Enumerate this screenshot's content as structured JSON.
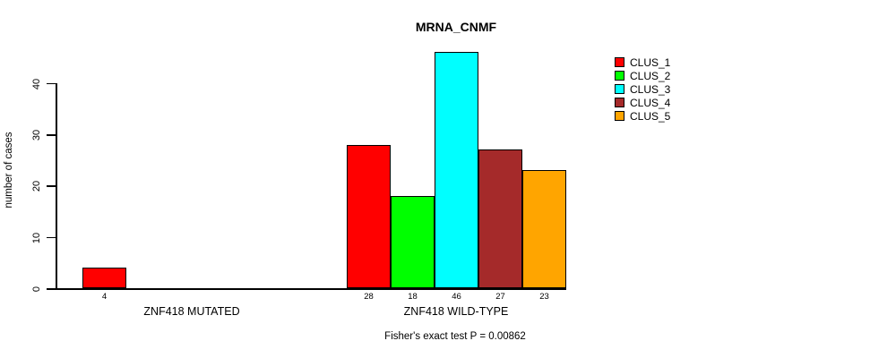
{
  "chart_data": {
    "type": "bar",
    "title": "MRNA_CNMF",
    "ylabel": "number of cases",
    "ylim": [
      0,
      46
    ],
    "yticks": [
      0,
      10,
      20,
      30,
      40
    ],
    "grid": false,
    "footnote": "Fisher's exact test P = 0.00862",
    "legend": {
      "position": "right",
      "entries": [
        {
          "label": "CLUS_1",
          "color": "#ff0000"
        },
        {
          "label": "CLUS_2",
          "color": "#00ff00"
        },
        {
          "label": "CLUS_3",
          "color": "#00ffff"
        },
        {
          "label": "CLUS_4",
          "color": "#a52a2a"
        },
        {
          "label": "CLUS_5",
          "color": "#ffa500"
        }
      ]
    },
    "groups": [
      {
        "label": "ZNF418 MUTATED",
        "bars": [
          {
            "cluster": "CLUS_1",
            "value": 4,
            "color": "#ff0000"
          }
        ]
      },
      {
        "label": "ZNF418 WILD-TYPE",
        "bars": [
          {
            "cluster": "CLUS_1",
            "value": 28,
            "color": "#ff0000"
          },
          {
            "cluster": "CLUS_2",
            "value": 18,
            "color": "#00ff00"
          },
          {
            "cluster": "CLUS_3",
            "value": 46,
            "color": "#00ffff"
          },
          {
            "cluster": "CLUS_4",
            "value": 27,
            "color": "#a52a2a"
          },
          {
            "cluster": "CLUS_5",
            "value": 23,
            "color": "#ffa500"
          }
        ]
      }
    ]
  }
}
